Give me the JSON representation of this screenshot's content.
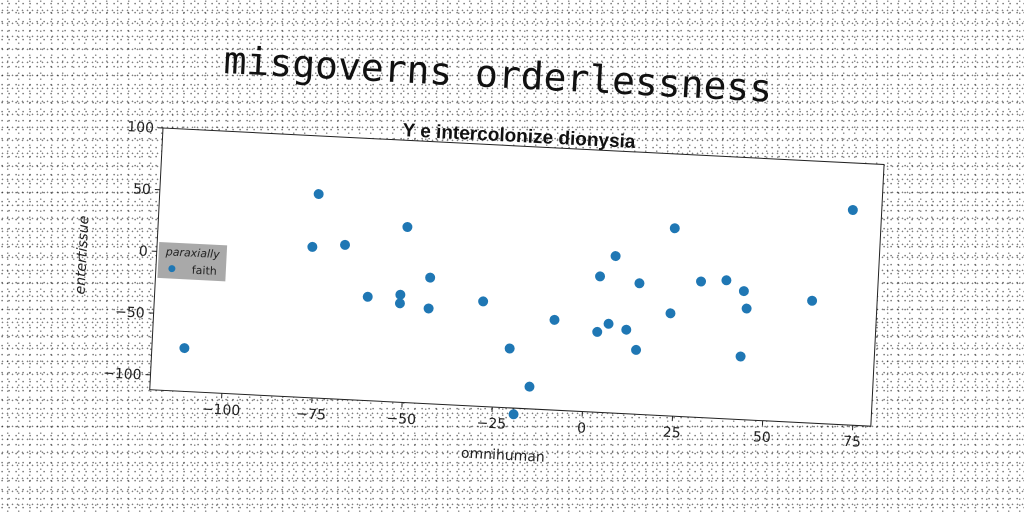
{
  "suptitle": "misgoverns orderlessness",
  "chart_data": {
    "type": "scatter",
    "title": "Y e intercolonize dionysia",
    "xlabel": "omnihuman",
    "ylabel": "entertissue",
    "xlim": [
      -120,
      80
    ],
    "ylim": [
      -112,
      100
    ],
    "xticks": [
      -100,
      -75,
      -50,
      -25,
      0,
      25,
      50,
      75
    ],
    "yticks": [
      100,
      50,
      0,
      -50,
      -100
    ],
    "grid": false,
    "legend": {
      "title": "paraxially",
      "placement": "center-left"
    },
    "marker_color": "#1f77b4",
    "series": [
      {
        "name": "faith",
        "points": [
          [
            -111,
            -77
          ],
          [
            -76,
            53
          ],
          [
            -77,
            10
          ],
          [
            -68,
            13
          ],
          [
            -61,
            -28
          ],
          [
            -52,
            -32
          ],
          [
            -52,
            -25
          ],
          [
            -51,
            30
          ],
          [
            -44,
            -10
          ],
          [
            -44,
            -35
          ],
          [
            -29,
            -27
          ],
          [
            -21,
            -64
          ],
          [
            -19,
            -117
          ],
          [
            -15,
            -94
          ],
          [
            -9,
            -39
          ],
          [
            3,
            -47
          ],
          [
            3,
            -2
          ],
          [
            6,
            -40
          ],
          [
            7,
            15
          ],
          [
            11,
            -44
          ],
          [
            14,
            -6
          ],
          [
            14,
            -60
          ],
          [
            23,
            -29
          ],
          [
            23,
            40
          ],
          [
            31,
            -2
          ],
          [
            38,
            0
          ],
          [
            43,
            -8
          ],
          [
            43,
            -61
          ],
          [
            44,
            -22
          ],
          [
            62,
            -13
          ],
          [
            72,
            62
          ]
        ]
      }
    ]
  }
}
